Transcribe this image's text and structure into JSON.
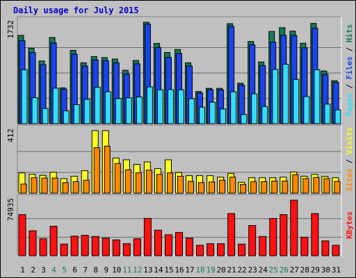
{
  "title": "Daily usage for July 2015",
  "colors": {
    "pages": "#33ddff",
    "files": "#1a44ee",
    "hits": "#127a55",
    "sites": "#ff8800",
    "visits": "#ffff22",
    "kbytes": "#ff1111",
    "weekday_label": "#000000",
    "weekend_label": "#1a7a50",
    "bg": "#c0c0c0"
  },
  "chart_data": [
    {
      "type": "bar",
      "name": "hits-files-pages",
      "max_label": "1732",
      "ylim": [
        0,
        1732
      ],
      "legend": [
        "Pages",
        " / ",
        "Files",
        " / ",
        "Hits"
      ],
      "series": [
        {
          "name": "Hits",
          "values": [
            1508,
            1288,
            1071,
            1472,
            612,
            1252,
            1040,
            1146,
            1128,
            1104,
            912,
            1080,
            1732,
            1370,
            1216,
            1266,
            1040,
            550,
            604,
            604,
            1708,
            692,
            1404,
            1054,
            1574,
            1638,
            1580,
            1374,
            1712,
            900,
            734
          ]
        },
        {
          "name": "Files",
          "values": [
            1418,
            1216,
            1008,
            1378,
            590,
            1188,
            984,
            1088,
            1076,
            1040,
            846,
            1022,
            1700,
            1302,
            1132,
            1200,
            986,
            524,
            582,
            578,
            1662,
            660,
            1346,
            992,
            1392,
            1510,
            1506,
            1296,
            1630,
            842,
            706
          ]
        },
        {
          "name": "Pages",
          "values": [
            920,
            444,
            260,
            606,
            220,
            326,
            416,
            622,
            546,
            428,
            442,
            458,
            628,
            580,
            582,
            580,
            428,
            282,
            368,
            252,
            546,
            158,
            510,
            294,
            926,
            1016,
            756,
            464,
            922,
            334,
            236
          ]
        }
      ]
    },
    {
      "type": "bar",
      "name": "visits-sites",
      "max_label": "412",
      "ylim": [
        0,
        412
      ],
      "legend": [
        "Sites",
        " / ",
        "Visits"
      ],
      "series": [
        {
          "name": "Visits",
          "values": [
            134,
            124,
            118,
            138,
            96,
            112,
            148,
            412,
            412,
            232,
            220,
            190,
            206,
            162,
            220,
            136,
            116,
            116,
            116,
            106,
            130,
            72,
            102,
            102,
            102,
            106,
            140,
            112,
            124,
            110,
            102
          ]
        },
        {
          "name": "Sites",
          "values": [
            60,
            102,
            100,
            100,
            70,
            76,
            86,
            300,
            310,
            196,
            154,
            134,
            152,
            124,
            134,
            112,
            78,
            70,
            74,
            86,
            106,
            58,
            76,
            76,
            80,
            80,
            122,
            96,
            104,
            96,
            78
          ]
        }
      ]
    },
    {
      "type": "bar",
      "name": "kbytes",
      "max_label": "74935",
      "ylim": [
        0,
        74935
      ],
      "legend": [
        "KBytes"
      ],
      "series": [
        {
          "name": "KBytes",
          "values": [
            55474,
            33690,
            22992,
            39785,
            15742,
            26474,
            27573,
            25990,
            23806,
            21410,
            16292,
            22992,
            50282,
            34489,
            28272,
            31472,
            23806,
            14092,
            16292,
            16292,
            56864,
            15742,
            40772,
            25990,
            50282,
            55474,
            74935,
            24970,
            56864,
            20020,
            14092
          ]
        }
      ]
    }
  ],
  "days": [
    "1",
    "2",
    "3",
    "4",
    "5",
    "6",
    "7",
    "8",
    "9",
    "10",
    "11",
    "12",
    "13",
    "14",
    "15",
    "16",
    "17",
    "18",
    "19",
    "20",
    "21",
    "22",
    "23",
    "24",
    "25",
    "26",
    "27",
    "28",
    "29",
    "30",
    "31"
  ],
  "weekend_days": [
    4,
    5,
    11,
    12,
    18,
    19,
    25,
    26
  ]
}
